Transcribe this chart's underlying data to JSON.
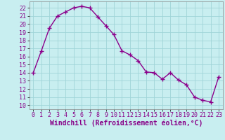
{
  "x": [
    0,
    1,
    2,
    3,
    4,
    5,
    6,
    7,
    8,
    9,
    10,
    11,
    12,
    13,
    14,
    15,
    16,
    17,
    18,
    19,
    20,
    21,
    22,
    23
  ],
  "y": [
    14,
    16.7,
    19.5,
    21.0,
    21.5,
    22.0,
    22.2,
    22.0,
    20.9,
    19.8,
    18.7,
    16.7,
    16.2,
    15.5,
    14.1,
    14.0,
    13.2,
    14.0,
    13.1,
    12.5,
    11.0,
    10.6,
    10.4,
    13.5
  ],
  "line_color": "#8b008b",
  "bg_color": "#c8eef0",
  "grid_color": "#a0d4d8",
  "xlabel": "Windchill (Refroidissement éolien,°C)",
  "xlim": [
    -0.5,
    23.5
  ],
  "ylim": [
    9.5,
    22.8
  ],
  "yticks": [
    10,
    11,
    12,
    13,
    14,
    15,
    16,
    17,
    18,
    19,
    20,
    21,
    22
  ],
  "xticks": [
    0,
    1,
    2,
    3,
    4,
    5,
    6,
    7,
    8,
    9,
    10,
    11,
    12,
    13,
    14,
    15,
    16,
    17,
    18,
    19,
    20,
    21,
    22,
    23
  ],
  "marker": "+",
  "marker_size": 4,
  "line_width": 1.0,
  "xlabel_fontsize": 7,
  "tick_fontsize": 6
}
